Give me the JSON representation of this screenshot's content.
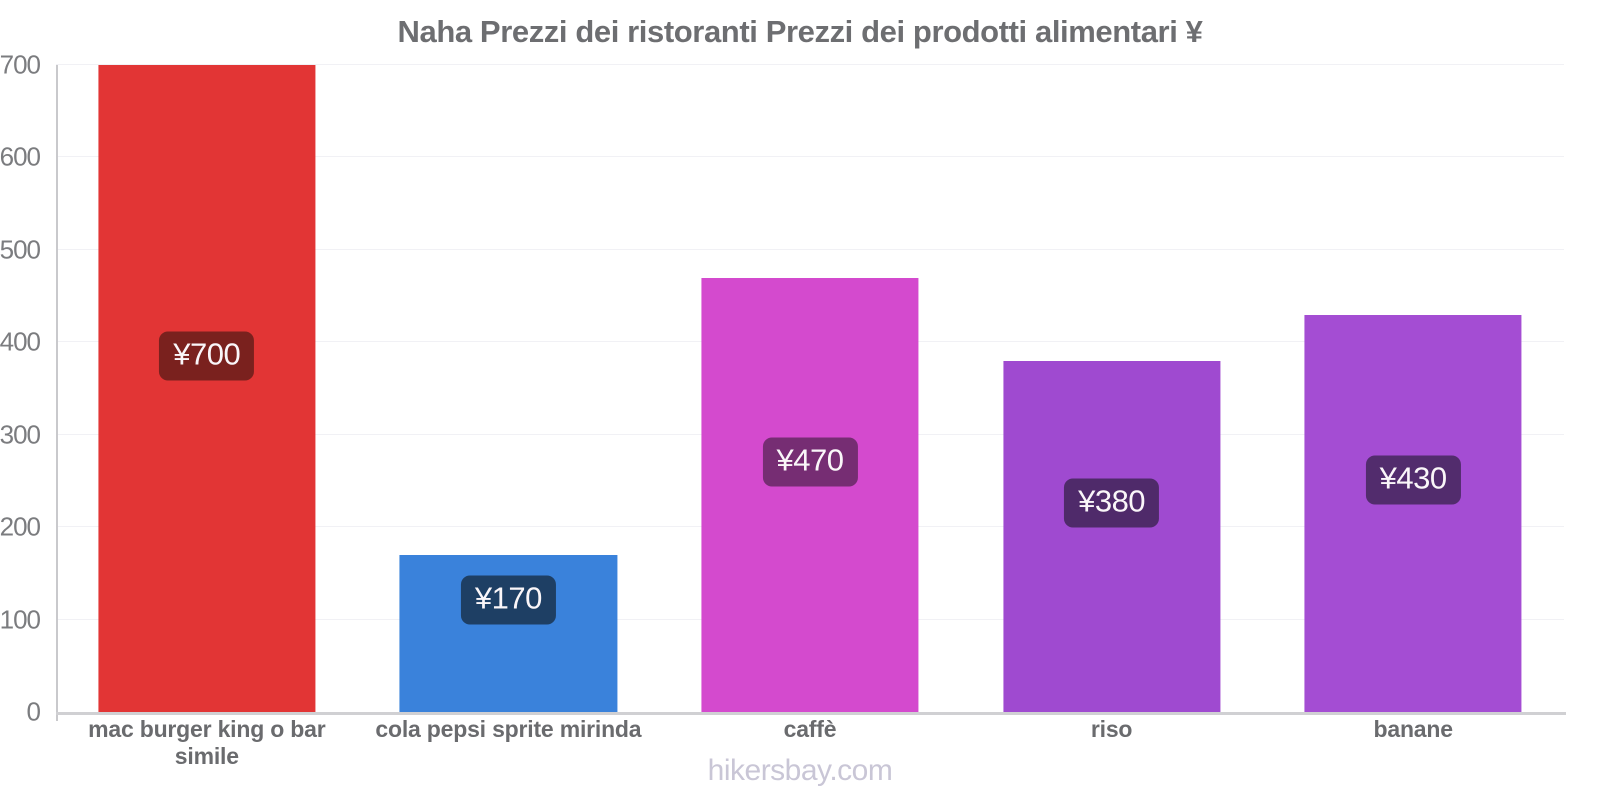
{
  "title": "Naha Prezzi dei ristoranti Prezzi dei prodotti alimentari ¥",
  "footer": {
    "text": "hikersbay.com"
  },
  "chart_data": {
    "type": "bar",
    "title": "Naha Prezzi dei ristoranti Prezzi dei prodotti alimentari ¥",
    "categories": [
      "mac burger king o bar simile",
      "cola pepsi sprite mirinda",
      "caffè",
      "riso",
      "banane"
    ],
    "values": [
      700,
      170,
      470,
      380,
      430
    ],
    "value_labels": [
      "¥700",
      "¥170",
      "¥470",
      "¥380",
      "¥430"
    ],
    "bar_colors": [
      "#e23535",
      "#3a82db",
      "#d44ace",
      "#9f4ad0",
      "#a44dd3"
    ],
    "label_bg_colors": [
      "#7a211e",
      "#1e3f64",
      "#762d73",
      "#4f2a6a",
      "#522c6d"
    ],
    "currency": "¥",
    "xlabel": "",
    "ylabel": "",
    "ylim": [
      0,
      700
    ],
    "yticks": [
      0,
      100,
      200,
      300,
      400,
      500,
      600,
      700
    ],
    "grid": "faint horizontal gridlines",
    "legend": "none"
  },
  "colors": {
    "background": "#ffffff",
    "title_text": "#6d6e71",
    "ytick_text": "#7b7c7f",
    "xlabel_text": "#6a6b6e",
    "axis_line": "#c9c9cc",
    "baseline": "#d0d0d3",
    "gridline": "#f1f1f5",
    "badge_text": "#faf6f9",
    "footer_text": "#c9c6d6"
  }
}
